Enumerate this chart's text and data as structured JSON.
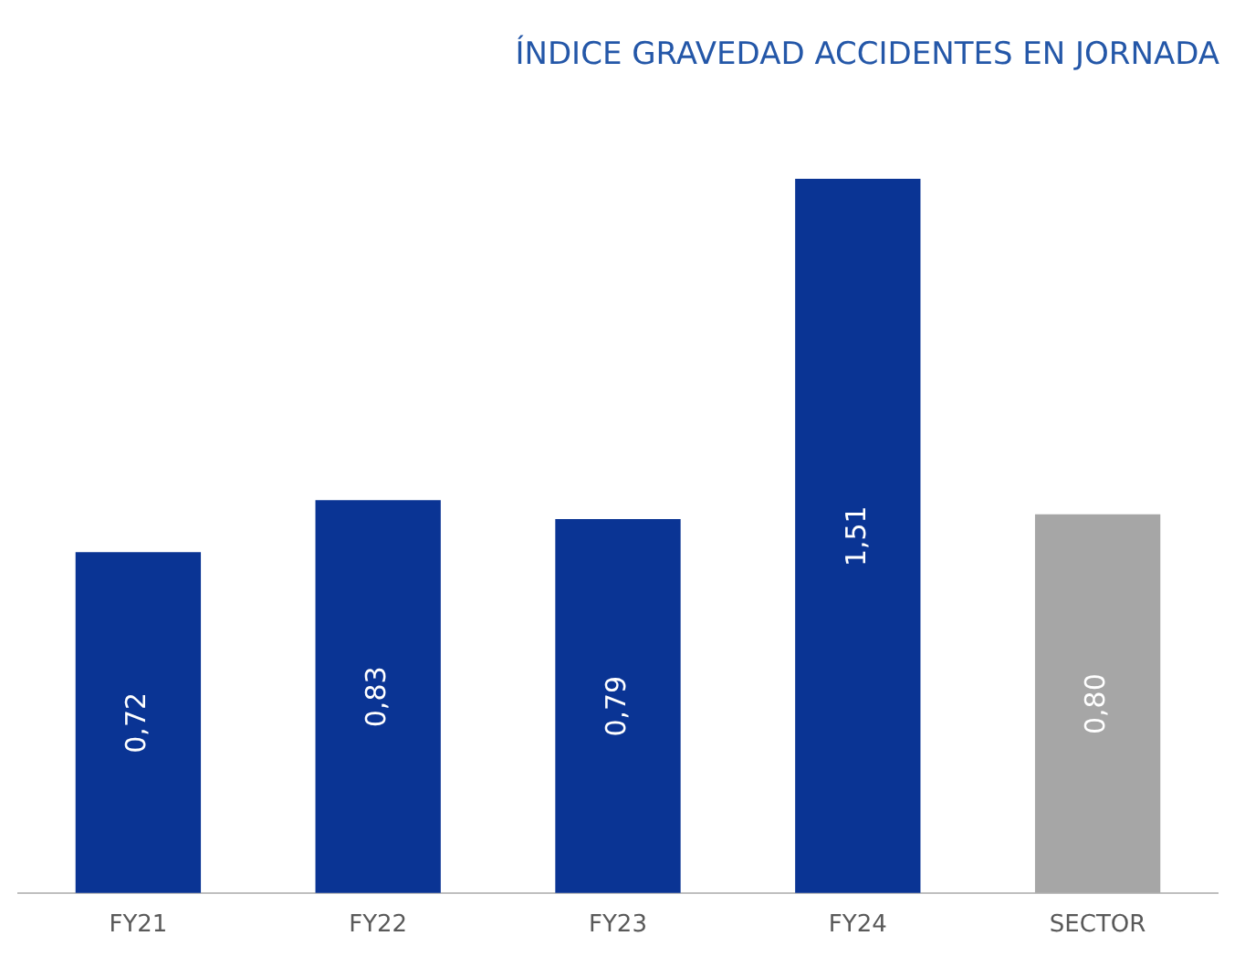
{
  "chart_data": {
    "type": "bar",
    "title": "ÍNDICE GRAVEDAD ACCIDENTES EN JORNADA",
    "categories": [
      "FY21",
      "FY22",
      "FY23",
      "FY24",
      "SECTOR"
    ],
    "values": [
      0.72,
      0.83,
      0.79,
      1.51,
      0.8
    ],
    "colors": [
      "#0a3494",
      "#0a3494",
      "#0a3494",
      "#0a3494",
      "#a6a6a6"
    ],
    "value_labels": [
      "0,72",
      "0,83",
      "0,79",
      "1,51",
      "0,80"
    ]
  }
}
